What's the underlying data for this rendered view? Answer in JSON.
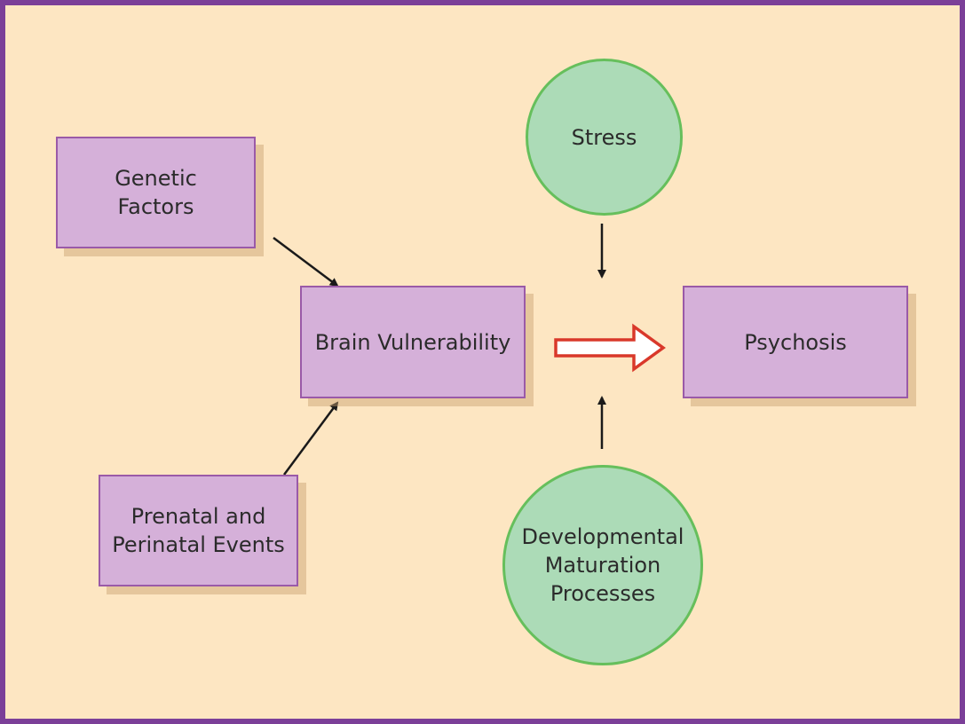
{
  "nodes": {
    "genetic_factors": "Genetic\nFactors",
    "prenatal_events": "Prenatal and\nPerinatal Events",
    "brain_vulnerability": "Brain Vulnerability",
    "stress": "Stress",
    "developmental_processes": "Developmental\nMaturation\nProcesses",
    "psychosis": "Psychosis"
  },
  "colors": {
    "frame_border": "#7b3f98",
    "background": "#fde6c2",
    "box_fill": "#d5b0d9",
    "box_border": "#9a5aa8",
    "circle_fill": "#acdbb7",
    "circle_border": "#66bf5c",
    "main_arrow": "#d9382a",
    "arrow": "#1a1a1a"
  }
}
